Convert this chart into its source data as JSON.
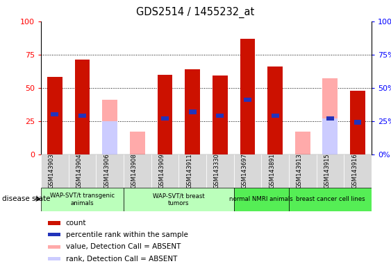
{
  "title": "GDS2514 / 1455232_at",
  "samples": [
    "GSM143903",
    "GSM143904",
    "GSM143906",
    "GSM143908",
    "GSM143909",
    "GSM143911",
    "GSM143330",
    "GSM143697",
    "GSM143891",
    "GSM143913",
    "GSM143915",
    "GSM143916"
  ],
  "red_bars": [
    58,
    71,
    0,
    0,
    60,
    64,
    59,
    87,
    66,
    0,
    0,
    48
  ],
  "blue_bars": [
    30,
    29,
    0,
    0,
    27,
    32,
    29,
    41,
    29,
    0,
    27,
    24
  ],
  "pink_bars": [
    0,
    0,
    41,
    17,
    0,
    0,
    0,
    0,
    0,
    17,
    57,
    0
  ],
  "lavender_bars": [
    0,
    0,
    25,
    0,
    0,
    0,
    0,
    0,
    0,
    0,
    27,
    0
  ],
  "group_data": [
    {
      "label": "WAP-SVT/t transgenic\nanimals",
      "cols": [
        0,
        1,
        2
      ],
      "color": "#bbffbb"
    },
    {
      "label": "WAP-SVT/t breast\ntumors",
      "cols": [
        3,
        4,
        5,
        6
      ],
      "color": "#bbffbb"
    },
    {
      "label": "normal NMRI animals",
      "cols": [
        7,
        8
      ],
      "color": "#55ee55"
    },
    {
      "label": "breast cancer cell lines",
      "cols": [
        9,
        10,
        11
      ],
      "color": "#55ee55"
    }
  ],
  "ylim": [
    0,
    100
  ],
  "yticks": [
    0,
    25,
    50,
    75,
    100
  ],
  "bar_width": 0.55,
  "red_color": "#cc1100",
  "blue_color": "#2233bb",
  "pink_color": "#ffaaaa",
  "lavender_color": "#ccccff",
  "legend_items": [
    [
      "#cc1100",
      "count"
    ],
    [
      "#2233bb",
      "percentile rank within the sample"
    ],
    [
      "#ffaaaa",
      "value, Detection Call = ABSENT"
    ],
    [
      "#ccccff",
      "rank, Detection Call = ABSENT"
    ]
  ]
}
